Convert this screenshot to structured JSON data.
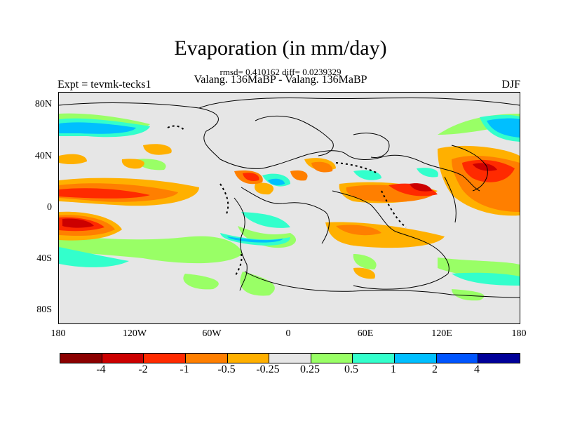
{
  "title": "Evaporation (in mm/day)",
  "stats": "rmsd= 0.410162 diff= 0.0239329",
  "subtitle": "Valang. 136MaBP - Valang. 136MaBP",
  "experiment": "Expt = tevmk-tecks1",
  "season": "DJF",
  "axes": {
    "y_labels": [
      "80N",
      "40N",
      "0",
      "40S",
      "80S"
    ],
    "x_labels": [
      "180",
      "120W",
      "60W",
      "0",
      "60E",
      "120E",
      "180"
    ]
  },
  "colorbar": {
    "labels": [
      "-4",
      "-2",
      "-1",
      "-0.5",
      "-0.25",
      "0.25",
      "0.5",
      "1",
      "2",
      "4"
    ],
    "colors": [
      "#8b0000",
      "#cc0000",
      "#ff2a00",
      "#ff7f00",
      "#ffb000",
      "#e6e6e6",
      "#99ff66",
      "#33ffcc",
      "#00bfff",
      "#0055ff",
      "#000099"
    ]
  }
}
